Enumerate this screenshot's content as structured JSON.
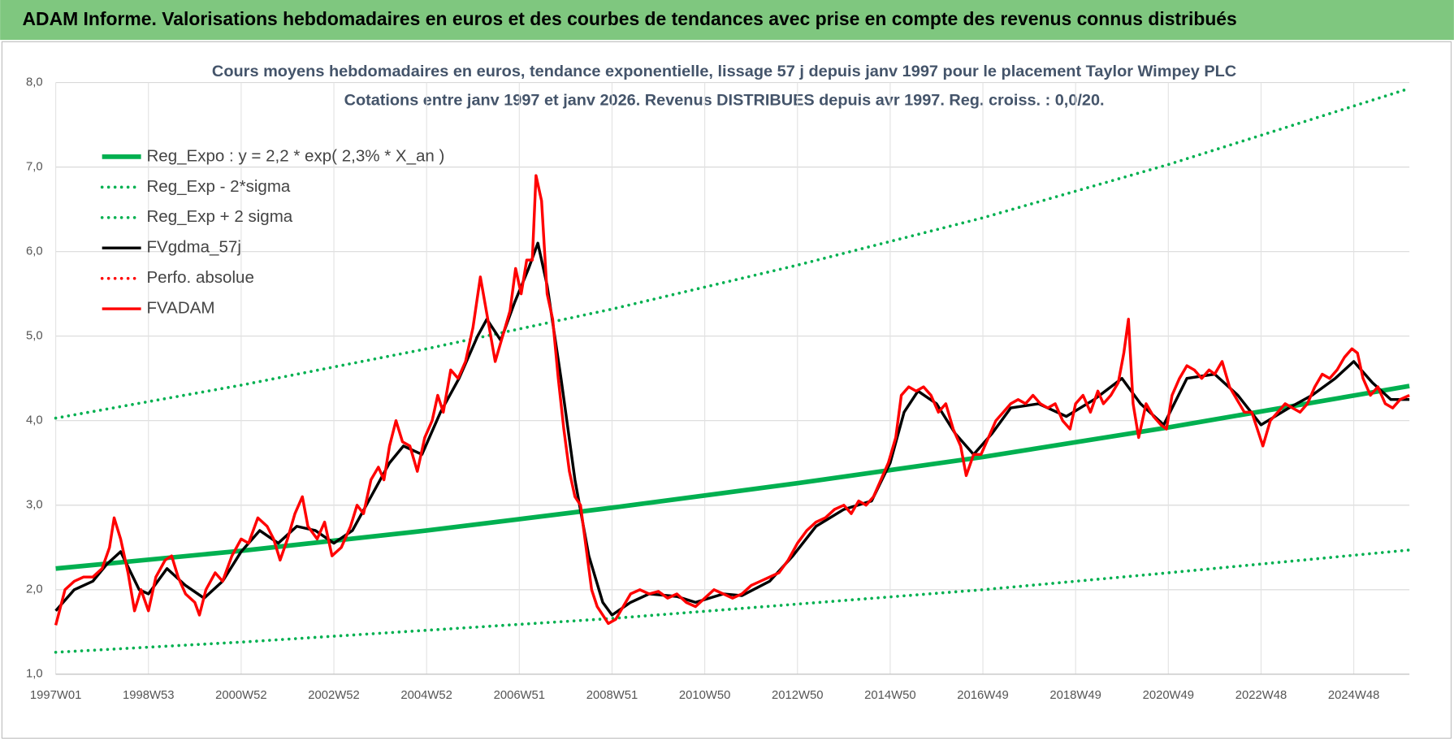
{
  "header": {
    "title": "ADAM Informe. Valorisations hebdomadaires en euros et des courbes de tendances avec prise en compte des revenus connus distribués"
  },
  "chart_data": {
    "type": "line",
    "title": "Cours moyens hebdomadaires en euros, tendance exponentielle, lissage 57 j depuis janv 1997 pour le placement Taylor Wimpey PLC",
    "subtitle": "Cotations entre janv 1997 et janv 2026. Revenus DISTRIBUES depuis avr 1997. Reg. croiss. : 0,0/20.",
    "xlim": [
      1997,
      2026.2
    ],
    "ylim": [
      1,
      8
    ],
    "xticks": [
      {
        "value": 1997,
        "label": "1997W01"
      },
      {
        "value": 1999,
        "label": "1998W53"
      },
      {
        "value": 2001,
        "label": "2000W52"
      },
      {
        "value": 2003,
        "label": "2002W52"
      },
      {
        "value": 2005,
        "label": "2004W52"
      },
      {
        "value": 2007,
        "label": "2006W51"
      },
      {
        "value": 2009,
        "label": "2008W51"
      },
      {
        "value": 2011,
        "label": "2010W50"
      },
      {
        "value": 2013,
        "label": "2012W50"
      },
      {
        "value": 2015,
        "label": "2014W50"
      },
      {
        "value": 2017,
        "label": "2016W49"
      },
      {
        "value": 2019,
        "label": "2018W49"
      },
      {
        "value": 2021,
        "label": "2020W49"
      },
      {
        "value": 2023,
        "label": "2022W48"
      },
      {
        "value": 2025,
        "label": "2024W48"
      }
    ],
    "yticks": [
      {
        "value": 1,
        "label": "1,0"
      },
      {
        "value": 2,
        "label": "2,0"
      },
      {
        "value": 3,
        "label": "3,0"
      },
      {
        "value": 4,
        "label": "4,0"
      },
      {
        "value": 5,
        "label": "5,0"
      },
      {
        "value": 6,
        "label": "6,0"
      },
      {
        "value": 7,
        "label": "7,0"
      },
      {
        "value": 8,
        "label": "8,0"
      }
    ],
    "grid": true,
    "series": [
      {
        "name": "Reg_Expo : y = 2,2 * exp( 2,3% *  X_an )",
        "color": "#00b050",
        "style": "solid",
        "x": [
          1997,
          2001,
          2005,
          2009,
          2013,
          2017,
          2021,
          2026.2
        ],
        "values": [
          2.25,
          2.46,
          2.7,
          2.97,
          3.26,
          3.57,
          3.92,
          4.41
        ]
      },
      {
        "name": "Reg_Exp - 2*sigma",
        "color": "#00b050",
        "style": "dotted",
        "x": [
          1997,
          2001,
          2005,
          2009,
          2013,
          2017,
          2021,
          2026.2
        ],
        "values": [
          1.26,
          1.38,
          1.52,
          1.66,
          1.83,
          2.0,
          2.2,
          2.47
        ]
      },
      {
        "name": "Reg_Exp + 2 sigma",
        "color": "#00b050",
        "style": "dotted",
        "x": [
          1997,
          2001,
          2005,
          2009,
          2013,
          2017,
          2021,
          2026.2
        ],
        "values": [
          4.03,
          4.42,
          4.85,
          5.32,
          5.84,
          6.4,
          7.03,
          7.93
        ]
      },
      {
        "name": "FVgdma_57j",
        "color": "#000000",
        "style": "solid",
        "x": [
          1997.0,
          1997.4,
          1997.8,
          1998.1,
          1998.4,
          1998.8,
          1999.0,
          1999.4,
          1999.8,
          2000.2,
          2000.6,
          2001.0,
          2001.4,
          2001.8,
          2002.2,
          2002.6,
          2003.0,
          2003.4,
          2003.8,
          2004.2,
          2004.5,
          2004.9,
          2005.3,
          2005.7,
          2006.1,
          2006.3,
          2006.6,
          2006.9,
          2007.2,
          2007.4,
          2007.6,
          2007.9,
          2008.2,
          2008.5,
          2008.8,
          2009.0,
          2009.4,
          2009.8,
          2010.4,
          2010.8,
          2011.4,
          2011.8,
          2012.4,
          2012.9,
          2013.4,
          2014.0,
          2014.6,
          2015.0,
          2015.3,
          2015.6,
          2016.0,
          2016.4,
          2016.8,
          2017.2,
          2017.6,
          2018.2,
          2018.8,
          2019.4,
          2020.0,
          2020.4,
          2020.9,
          2021.4,
          2022.0,
          2022.5,
          2023.0,
          2023.6,
          2024.1,
          2024.6,
          2025.0,
          2025.4,
          2025.8,
          2026.2
        ],
        "values": [
          1.75,
          2.0,
          2.1,
          2.3,
          2.45,
          2.0,
          1.95,
          2.25,
          2.05,
          1.9,
          2.1,
          2.45,
          2.7,
          2.55,
          2.75,
          2.7,
          2.55,
          2.7,
          3.1,
          3.5,
          3.7,
          3.6,
          4.1,
          4.5,
          5.0,
          5.2,
          4.95,
          5.4,
          5.8,
          6.1,
          5.6,
          4.5,
          3.3,
          2.4,
          1.85,
          1.7,
          1.85,
          1.95,
          1.92,
          1.85,
          1.95,
          1.93,
          2.1,
          2.4,
          2.75,
          2.95,
          3.05,
          3.5,
          4.1,
          4.35,
          4.2,
          3.85,
          3.6,
          3.85,
          4.15,
          4.2,
          4.05,
          4.25,
          4.5,
          4.2,
          3.95,
          4.5,
          4.55,
          4.3,
          3.95,
          4.15,
          4.3,
          4.5,
          4.7,
          4.45,
          4.25,
          4.25
        ]
      },
      {
        "name": "Perfo. absolue",
        "color": "#ff0000",
        "style": "dotted",
        "x": [],
        "values": []
      },
      {
        "name": "FVADAM",
        "color": "#ff0000",
        "style": "solid",
        "x": [
          1997.0,
          1997.2,
          1997.4,
          1997.6,
          1997.8,
          1998.0,
          1998.16,
          1998.26,
          1998.4,
          1998.56,
          1998.7,
          1998.84,
          1999.0,
          1999.16,
          1999.36,
          1999.5,
          1999.64,
          1999.8,
          2000.0,
          2000.1,
          2000.24,
          2000.44,
          2000.6,
          2000.8,
          2001.0,
          2001.16,
          2001.36,
          2001.56,
          2001.7,
          2001.84,
          2002.0,
          2002.16,
          2002.32,
          2002.44,
          2002.64,
          2002.8,
          2002.96,
          2003.16,
          2003.36,
          2003.5,
          2003.64,
          2003.8,
          2003.96,
          2004.08,
          2004.2,
          2004.34,
          2004.48,
          2004.64,
          2004.8,
          2004.96,
          2005.12,
          2005.24,
          2005.36,
          2005.52,
          2005.68,
          2005.84,
          2006.0,
          2006.16,
          2006.32,
          2006.48,
          2006.64,
          2006.8,
          2006.92,
          2007.04,
          2007.16,
          2007.28,
          2007.36,
          2007.48,
          2007.6,
          2007.72,
          2007.84,
          2007.96,
          2008.08,
          2008.2,
          2008.32,
          2008.44,
          2008.56,
          2008.68,
          2008.8,
          2008.92,
          2009.08,
          2009.24,
          2009.4,
          2009.6,
          2009.8,
          2010.0,
          2010.2,
          2010.4,
          2010.6,
          2010.8,
          2011.0,
          2011.2,
          2011.4,
          2011.6,
          2011.8,
          2012.0,
          2012.2,
          2012.4,
          2012.6,
          2012.8,
          2013.0,
          2013.2,
          2013.4,
          2013.6,
          2013.8,
          2014.0,
          2014.16,
          2014.32,
          2014.48,
          2014.64,
          2014.8,
          2014.96,
          2015.12,
          2015.24,
          2015.4,
          2015.56,
          2015.72,
          2015.88,
          2016.04,
          2016.2,
          2016.36,
          2016.52,
          2016.64,
          2016.8,
          2016.96,
          2017.12,
          2017.28,
          2017.44,
          2017.6,
          2017.76,
          2017.92,
          2018.08,
          2018.24,
          2018.4,
          2018.56,
          2018.72,
          2018.88,
          2019.0,
          2019.16,
          2019.32,
          2019.48,
          2019.6,
          2019.76,
          2019.92,
          2020.04,
          2020.14,
          2020.24,
          2020.36,
          2020.52,
          2020.68,
          2020.84,
          2020.96,
          2021.08,
          2021.24,
          2021.4,
          2021.56,
          2021.72,
          2021.88,
          2022.0,
          2022.16,
          2022.32,
          2022.48,
          2022.64,
          2022.8,
          2022.92,
          2023.04,
          2023.2,
          2023.36,
          2023.52,
          2023.68,
          2023.84,
          2024.0,
          2024.16,
          2024.32,
          2024.48,
          2024.64,
          2024.8,
          2024.96,
          2025.08,
          2025.2,
          2025.36,
          2025.52,
          2025.68,
          2025.84,
          2026.0,
          2026.2
        ],
        "values": [
          1.58,
          2.0,
          2.1,
          2.15,
          2.15,
          2.25,
          2.5,
          2.85,
          2.6,
          2.2,
          1.75,
          2.0,
          1.75,
          2.15,
          2.35,
          2.4,
          2.15,
          1.95,
          1.85,
          1.7,
          2.0,
          2.2,
          2.1,
          2.4,
          2.6,
          2.55,
          2.85,
          2.75,
          2.6,
          2.35,
          2.6,
          2.9,
          3.1,
          2.75,
          2.6,
          2.8,
          2.4,
          2.5,
          2.75,
          3.0,
          2.9,
          3.3,
          3.45,
          3.3,
          3.7,
          4.0,
          3.75,
          3.7,
          3.4,
          3.8,
          4.0,
          4.3,
          4.1,
          4.6,
          4.5,
          4.7,
          5.1,
          5.7,
          5.2,
          4.7,
          5.0,
          5.3,
          5.8,
          5.5,
          5.9,
          5.9,
          6.9,
          6.6,
          5.5,
          5.2,
          4.5,
          3.9,
          3.4,
          3.1,
          3.0,
          2.5,
          2.0,
          1.8,
          1.7,
          1.6,
          1.65,
          1.8,
          1.95,
          2.0,
          1.95,
          1.98,
          1.9,
          1.95,
          1.85,
          1.8,
          1.9,
          2.0,
          1.95,
          1.9,
          1.95,
          2.05,
          2.1,
          2.15,
          2.2,
          2.35,
          2.55,
          2.7,
          2.8,
          2.85,
          2.95,
          3.0,
          2.9,
          3.05,
          3.0,
          3.1,
          3.3,
          3.5,
          3.8,
          4.3,
          4.4,
          4.35,
          4.4,
          4.3,
          4.1,
          4.2,
          3.9,
          3.7,
          3.35,
          3.6,
          3.6,
          3.8,
          4.0,
          4.1,
          4.2,
          4.25,
          4.2,
          4.3,
          4.2,
          4.15,
          4.2,
          4.0,
          3.9,
          4.2,
          4.3,
          4.1,
          4.35,
          4.2,
          4.3,
          4.45,
          4.8,
          5.2,
          4.2,
          3.8,
          4.2,
          4.05,
          3.95,
          3.9,
          4.3,
          4.5,
          4.65,
          4.6,
          4.5,
          4.6,
          4.55,
          4.7,
          4.4,
          4.25,
          4.1,
          4.1,
          3.9,
          3.7,
          4.0,
          4.1,
          4.2,
          4.15,
          4.1,
          4.2,
          4.4,
          4.55,
          4.5,
          4.6,
          4.75,
          4.85,
          4.8,
          4.5,
          4.3,
          4.4,
          4.2,
          4.15,
          4.25,
          4.3
        ]
      }
    ],
    "draw_order": [
      0,
      1,
      2,
      3,
      4,
      5
    ]
  }
}
